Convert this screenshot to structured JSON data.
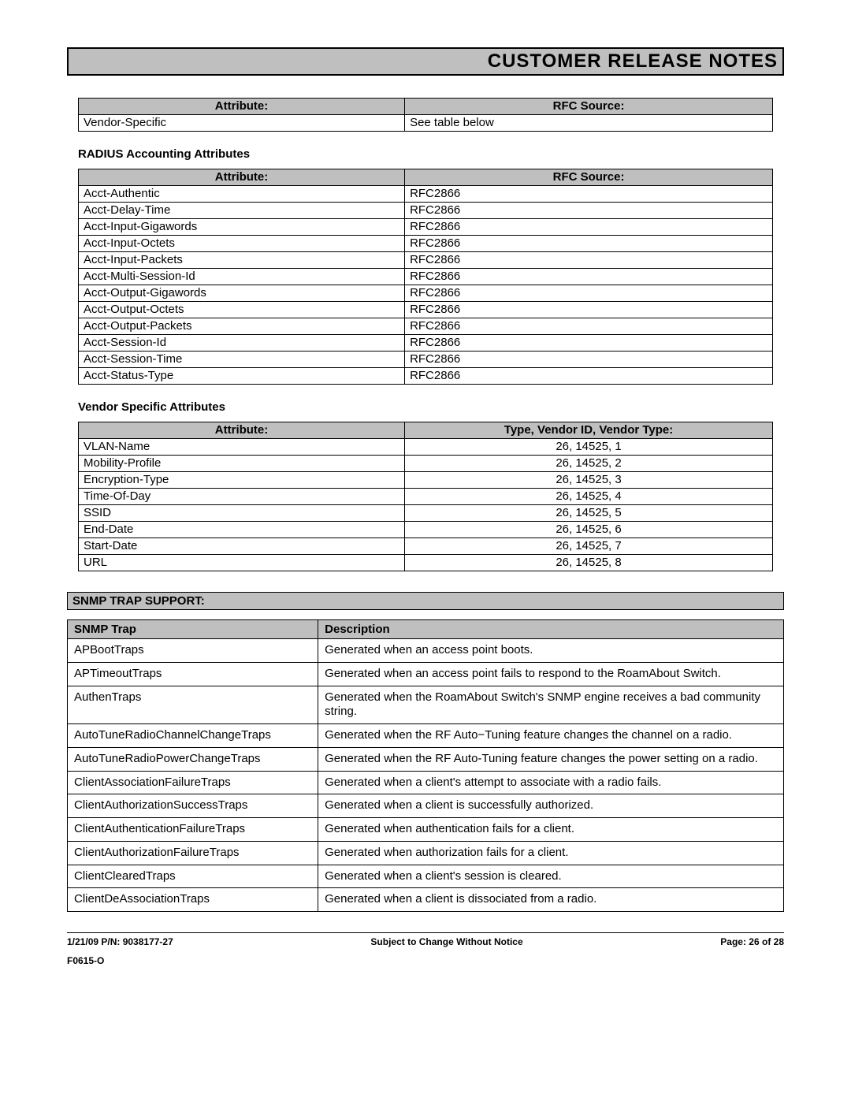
{
  "header": {
    "title": "CUSTOMER RELEASE NOTES"
  },
  "table1": {
    "columns": [
      "Attribute:",
      "RFC Source:"
    ],
    "col_widths": [
      "47%",
      "53%"
    ],
    "header_bg": "#bfbfbf",
    "border_color": "#000000",
    "rows": [
      [
        "Vendor-Specific",
        "See table below"
      ]
    ]
  },
  "heading_radius": "RADIUS Accounting Attributes",
  "table2": {
    "columns": [
      "Attribute:",
      "RFC Source:"
    ],
    "col_widths": [
      "47%",
      "53%"
    ],
    "header_bg": "#bfbfbf",
    "border_color": "#000000",
    "rows": [
      [
        "Acct-Authentic",
        "RFC2866"
      ],
      [
        "Acct-Delay-Time",
        "RFC2866"
      ],
      [
        "Acct-Input-Gigawords",
        "RFC2866"
      ],
      [
        "Acct-Input-Octets",
        "RFC2866"
      ],
      [
        "Acct-Input-Packets",
        "RFC2866"
      ],
      [
        "Acct-Multi-Session-Id",
        "RFC2866"
      ],
      [
        "Acct-Output-Gigawords",
        "RFC2866"
      ],
      [
        "Acct-Output-Octets",
        "RFC2866"
      ],
      [
        "Acct-Output-Packets",
        "RFC2866"
      ],
      [
        "Acct-Session-Id",
        "RFC2866"
      ],
      [
        "Acct-Session-Time",
        "RFC2866"
      ],
      [
        "Acct-Status-Type",
        "RFC2866"
      ]
    ]
  },
  "heading_vendor": "Vendor Specific Attributes",
  "table3": {
    "columns": [
      "Attribute:",
      "Type, Vendor ID, Vendor Type:"
    ],
    "col_widths": [
      "47%",
      "53%"
    ],
    "col2_align": "center",
    "header_bg": "#bfbfbf",
    "border_color": "#000000",
    "rows": [
      [
        "VLAN-Name",
        "26, 14525, 1"
      ],
      [
        "Mobility-Profile",
        "26, 14525, 2"
      ],
      [
        "Encryption-Type",
        "26, 14525, 3"
      ],
      [
        "Time-Of-Day",
        "26, 14525, 4"
      ],
      [
        "SSID",
        "26, 14525, 5"
      ],
      [
        "End-Date",
        "26, 14525, 6"
      ],
      [
        "Start-Date",
        "26, 14525, 7"
      ],
      [
        "URL",
        "26, 14525, 8"
      ]
    ]
  },
  "snmp_heading": "SNMP TRAP SUPPORT:",
  "table_snmp": {
    "columns": [
      "SNMP Trap",
      "Description"
    ],
    "col_widths": [
      "35%",
      "65%"
    ],
    "header_bg": "#bfbfbf",
    "border_color": "#000000",
    "rows": [
      [
        "APBootTraps",
        "Generated when an access point boots."
      ],
      [
        "APTimeoutTraps",
        "Generated when an access point fails to respond to the RoamAbout Switch."
      ],
      [
        "AuthenTraps",
        "Generated when the RoamAbout Switch's SNMP engine receives a bad community string."
      ],
      [
        "AutoTuneRadioChannelChangeTraps",
        "Generated when the RF Auto−Tuning feature changes the channel on a radio."
      ],
      [
        "AutoTuneRadioPowerChangeTraps",
        "Generated when the RF Auto-Tuning feature changes the power setting on a radio."
      ],
      [
        "ClientAssociationFailureTraps",
        "Generated when a client's attempt to associate with a radio fails."
      ],
      [
        "ClientAuthorizationSuccessTraps",
        "Generated when a client is successfully authorized."
      ],
      [
        "ClientAuthenticationFailureTraps",
        "Generated when authentication fails for a client."
      ],
      [
        "ClientAuthorizationFailureTraps",
        "Generated when authorization fails for a client."
      ],
      [
        "ClientClearedTraps",
        "Generated when a client's session is cleared."
      ],
      [
        "ClientDeAssociationTraps",
        "Generated when a client is dissociated from a radio."
      ]
    ]
  },
  "footer": {
    "left": "1/21/09  P/N: 9038177-27",
    "center": "Subject to Change Without Notice",
    "right": "Page: 26 of 28",
    "sub": "F0615-O"
  }
}
